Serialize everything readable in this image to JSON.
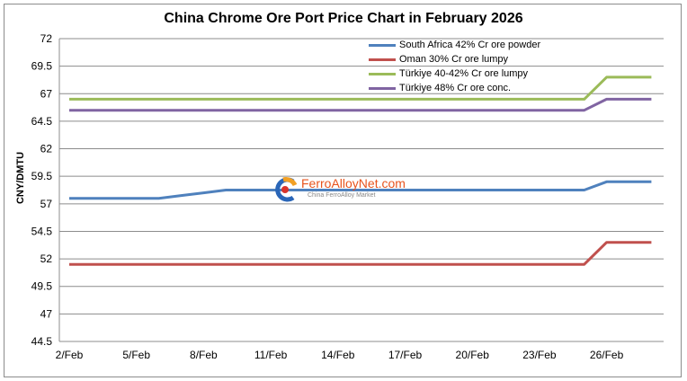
{
  "chart_data": {
    "type": "line",
    "title": "China Chrome Ore Port Price Chart in February 2026",
    "xlabel": "",
    "ylabel": "CNY/DMTU",
    "ylim": [
      44.5,
      72
    ],
    "yticks": [
      "72",
      "69.5",
      "67",
      "64.5",
      "62",
      "59.5",
      "57",
      "54.5",
      "52",
      "49.5",
      "47",
      "44.5"
    ],
    "xtick_labels": [
      "2/Feb",
      "5/Feb",
      "8/Feb",
      "11/Feb",
      "14/Feb",
      "17/Feb",
      "20/Feb",
      "23/Feb",
      "26/Feb"
    ],
    "x": [
      "2/Feb",
      "3/Feb",
      "4/Feb",
      "5/Feb",
      "6/Feb",
      "7/Feb",
      "8/Feb",
      "9/Feb",
      "10/Feb",
      "11/Feb",
      "12/Feb",
      "13/Feb",
      "14/Feb",
      "15/Feb",
      "16/Feb",
      "17/Feb",
      "18/Feb",
      "19/Feb",
      "20/Feb",
      "21/Feb",
      "22/Feb",
      "23/Feb",
      "24/Feb",
      "25/Feb",
      "26/Feb",
      "27/Feb",
      "28/Feb"
    ],
    "grid": true,
    "legend_position": "top-right inside",
    "series": [
      {
        "name": "South Africa 42% Cr ore powder",
        "color": "#4f81bd",
        "values": [
          57.5,
          57.5,
          57.5,
          57.5,
          57.5,
          57.75,
          58,
          58.25,
          58.25,
          58.25,
          58.25,
          58.25,
          58.25,
          58.25,
          58.25,
          58.25,
          58.25,
          58.25,
          58.25,
          58.25,
          58.25,
          58.25,
          58.25,
          58.25,
          59,
          59,
          59
        ]
      },
      {
        "name": "Oman 30% Cr ore lumpy",
        "color": "#c0504d",
        "values": [
          51.5,
          51.5,
          51.5,
          51.5,
          51.5,
          51.5,
          51.5,
          51.5,
          51.5,
          51.5,
          51.5,
          51.5,
          51.5,
          51.5,
          51.5,
          51.5,
          51.5,
          51.5,
          51.5,
          51.5,
          51.5,
          51.5,
          51.5,
          51.5,
          53.5,
          53.5,
          53.5
        ]
      },
      {
        "name": "Türkiye 40-42% Cr ore lumpy",
        "color": "#9bbb59",
        "values": [
          66.5,
          66.5,
          66.5,
          66.5,
          66.5,
          66.5,
          66.5,
          66.5,
          66.5,
          66.5,
          66.5,
          66.5,
          66.5,
          66.5,
          66.5,
          66.5,
          66.5,
          66.5,
          66.5,
          66.5,
          66.5,
          66.5,
          66.5,
          66.5,
          68.5,
          68.5,
          68.5
        ]
      },
      {
        "name": "Türkiye 48% Cr ore conc.",
        "color": "#8064a2",
        "values": [
          65.5,
          65.5,
          65.5,
          65.5,
          65.5,
          65.5,
          65.5,
          65.5,
          65.5,
          65.5,
          65.5,
          65.5,
          65.5,
          65.5,
          65.5,
          65.5,
          65.5,
          65.5,
          65.5,
          65.5,
          65.5,
          65.5,
          65.5,
          65.5,
          66.5,
          66.5,
          66.5
        ]
      }
    ]
  },
  "watermark": {
    "brand": "FerroAlloyNet.com",
    "tagline": "China FerroAlloy Market"
  }
}
